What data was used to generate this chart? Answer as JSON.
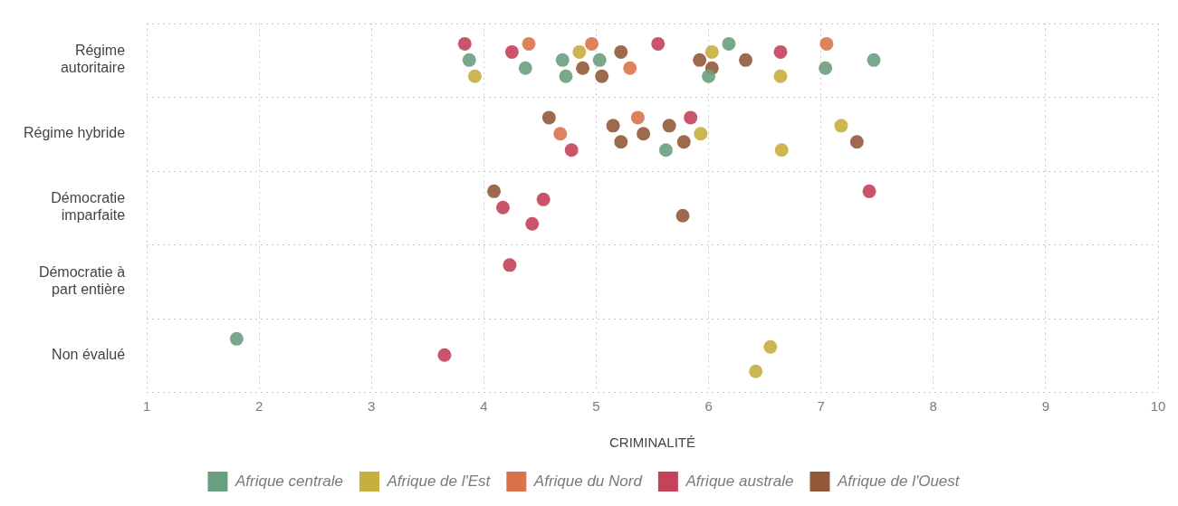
{
  "chart_data": {
    "type": "scatter",
    "orientation": "horizontal",
    "xlabel": "CRIMINALITÉ",
    "categories": [
      "Régime autoritaire",
      "Régime hybride",
      "Démocratie imparfaite",
      "Démocratie à part entière",
      "Non évalué"
    ],
    "xlim": [
      1,
      10
    ],
    "xticks": [
      1,
      2,
      3,
      4,
      5,
      6,
      7,
      8,
      9,
      10
    ],
    "grid": true,
    "legend": "bottom",
    "marker": "circle",
    "series": [
      {
        "name": "Afrique centrale",
        "color": "#6a9e80",
        "x": [
          "Régime autoritaire",
          "Régime autoritaire",
          "Régime autoritaire",
          "Régime autoritaire",
          "Régime autoritaire",
          "Régime autoritaire",
          "Régime autoritaire",
          "Régime autoritaire",
          "Régime autoritaire",
          "Régime hybride",
          "Non évalué"
        ],
        "values": [
          3.87,
          4.37,
          4.7,
          4.73,
          5.03,
          6.0,
          6.18,
          7.04,
          7.47,
          5.62,
          1.8
        ]
      },
      {
        "name": "Afrique de l'Est",
        "color": "#c8ae3e",
        "x": [
          "Régime autoritaire",
          "Régime autoritaire",
          "Régime autoritaire",
          "Régime autoritaire",
          "Régime hybride",
          "Régime hybride",
          "Régime hybride",
          "Non évalué",
          "Non évalué"
        ],
        "values": [
          3.92,
          4.85,
          6.03,
          6.64,
          5.93,
          6.65,
          7.18,
          6.42,
          6.55
        ]
      },
      {
        "name": "Afrique du Nord",
        "color": "#d9744a",
        "x": [
          "Régime autoritaire",
          "Régime autoritaire",
          "Régime autoritaire",
          "Régime autoritaire",
          "Régime hybride",
          "Régime hybride"
        ],
        "values": [
          4.4,
          4.96,
          5.3,
          7.05,
          4.68,
          5.37
        ]
      },
      {
        "name": "Afrique australe",
        "color": "#c4435a",
        "x": [
          "Régime autoritaire",
          "Régime autoritaire",
          "Régime autoritaire",
          "Régime autoritaire",
          "Régime hybride",
          "Régime hybride",
          "Démocratie imparfaite",
          "Démocratie imparfaite",
          "Démocratie imparfaite",
          "Démocratie imparfaite",
          "Démocratie à part entière",
          "Non évalué"
        ],
        "values": [
          3.83,
          4.25,
          5.55,
          6.64,
          4.78,
          5.84,
          4.17,
          4.43,
          4.53,
          7.43,
          4.23,
          3.65
        ]
      },
      {
        "name": "Afrique de l'Ouest",
        "color": "#935a3a",
        "x": [
          "Régime autoritaire",
          "Régime autoritaire",
          "Régime autoritaire",
          "Régime autoritaire",
          "Régime autoritaire",
          "Régime autoritaire",
          "Régime hybride",
          "Régime hybride",
          "Régime hybride",
          "Régime hybride",
          "Régime hybride",
          "Régime hybride",
          "Régime hybride",
          "Démocratie imparfaite",
          "Démocratie imparfaite"
        ],
        "values": [
          4.88,
          5.05,
          5.22,
          5.92,
          6.03,
          6.33,
          4.58,
          5.15,
          5.22,
          5.42,
          5.65,
          5.78,
          7.32,
          4.09,
          5.77
        ]
      }
    ]
  }
}
